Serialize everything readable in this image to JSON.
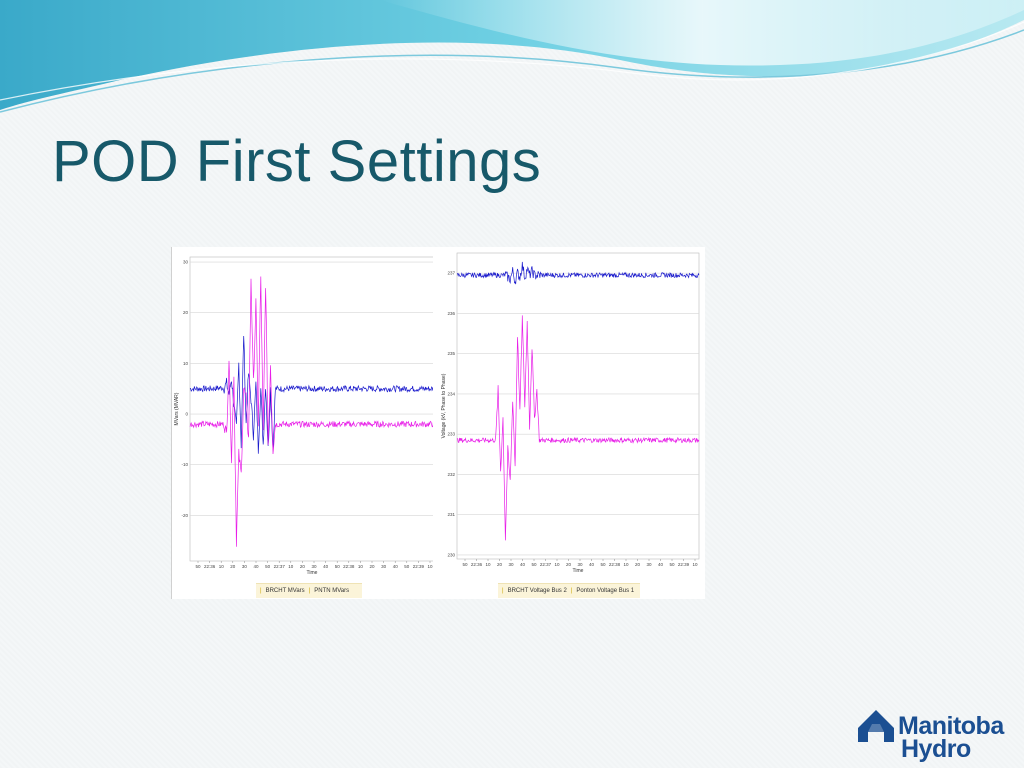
{
  "slide": {
    "title": "POD First Settings"
  },
  "colors": {
    "title": "#17596a",
    "series_blue": "#1a1acc",
    "series_magenta": "#e81ee8",
    "logo": "#1b4f92"
  },
  "logo": {
    "line1": "Manitoba",
    "line2": "Hydro",
    "icon": "manitoba-hydro-mark-icon"
  },
  "chart_data": [
    {
      "type": "line",
      "ylabel": "MVars (MVAR)",
      "xlabel": "Time",
      "ylim": [
        -29,
        31
      ],
      "yticks": [
        30,
        20,
        10,
        0,
        -10,
        -20
      ],
      "xlim": [
        0,
        100
      ],
      "xtick_labels": [
        "50",
        "22:36",
        "10",
        "20",
        "30",
        "40",
        "50",
        "22:37",
        "10",
        "20",
        "30",
        "40",
        "50",
        "22:38",
        "10",
        "20",
        "30",
        "40",
        "50",
        "22:39",
        "10"
      ],
      "grid": true,
      "legend": [
        "BRCHT MVars",
        "PNTN MVars"
      ],
      "series": [
        {
          "name": "BRCHT MVars",
          "color": "#1a1acc",
          "points": [
            [
              0,
              5
            ],
            [
              8,
              5
            ],
            [
              14,
              5.2
            ],
            [
              15,
              6
            ],
            [
              16,
              4
            ],
            [
              17,
              7
            ],
            [
              18,
              2
            ],
            [
              19,
              -3
            ],
            [
              20,
              10
            ],
            [
              21,
              -6
            ],
            [
              22,
              16
            ],
            [
              23,
              -2
            ],
            [
              24,
              8
            ],
            [
              25,
              3
            ],
            [
              26,
              -4
            ],
            [
              27,
              6
            ],
            [
              28,
              -7
            ],
            [
              29,
              5
            ],
            [
              30,
              -6
            ],
            [
              31,
              6
            ],
            [
              32,
              -7
            ],
            [
              33,
              5
            ],
            [
              34,
              -7
            ],
            [
              35,
              5
            ],
            [
              40,
              5
            ],
            [
              60,
              5
            ],
            [
              80,
              5
            ],
            [
              100,
              5
            ]
          ]
        },
        {
          "name": "PNTN MVars",
          "color": "#e81ee8",
          "points": [
            [
              0,
              -2
            ],
            [
              14,
              -2
            ],
            [
              15,
              -4
            ],
            [
              16,
              11
            ],
            [
              17,
              -9
            ],
            [
              18,
              8
            ],
            [
              19,
              -25
            ],
            [
              20,
              -8
            ],
            [
              21,
              -12
            ],
            [
              22,
              5
            ],
            [
              23,
              3
            ],
            [
              24,
              -5
            ],
            [
              25,
              27
            ],
            [
              26,
              6
            ],
            [
              27,
              22
            ],
            [
              28,
              -2
            ],
            [
              29,
              27
            ],
            [
              30,
              -4
            ],
            [
              31,
              26
            ],
            [
              32,
              -6
            ],
            [
              33,
              10
            ],
            [
              34,
              -7
            ],
            [
              35,
              -2
            ],
            [
              40,
              -2
            ],
            [
              60,
              -2
            ],
            [
              80,
              -2
            ],
            [
              100,
              -2
            ]
          ]
        }
      ]
    },
    {
      "type": "line",
      "ylabel": "Voltage (kV, Phase to Phase)",
      "xlabel": "Time",
      "ylim": [
        229.9,
        237.5
      ],
      "yticks": [
        237,
        236,
        235,
        234,
        233,
        232,
        231,
        230
      ],
      "xlim": [
        0,
        100
      ],
      "xtick_labels": [
        "50",
        "22:36",
        "10",
        "20",
        "30",
        "40",
        "50",
        "22:37",
        "10",
        "20",
        "30",
        "40",
        "50",
        "22:38",
        "10",
        "20",
        "30",
        "40",
        "50",
        "22:39",
        "10"
      ],
      "grid": true,
      "legend": [
        "BRCHT Voltage Bus 2",
        "Ponton Voltage Bus 1"
      ],
      "series": [
        {
          "name": "BRCHT Voltage Bus 2",
          "color": "#1a1acc",
          "points": [
            [
              0,
              236.95
            ],
            [
              20,
              236.95
            ],
            [
              22,
              236.85
            ],
            [
              23,
              237.05
            ],
            [
              24,
              236.8
            ],
            [
              25,
              237.0
            ],
            [
              26,
              236.9
            ],
            [
              27,
              237.2
            ],
            [
              28,
              236.9
            ],
            [
              29,
              237.1
            ],
            [
              30,
              236.95
            ],
            [
              31,
              237.05
            ],
            [
              32,
              236.95
            ],
            [
              35,
              236.95
            ],
            [
              60,
              236.95
            ],
            [
              100,
              236.95
            ]
          ]
        },
        {
          "name": "Ponton Voltage Bus 1",
          "color": "#e81ee8",
          "points": [
            [
              0,
              232.85
            ],
            [
              16,
              232.85
            ],
            [
              17,
              234.1
            ],
            [
              18,
              232.1
            ],
            [
              19,
              233.4
            ],
            [
              20,
              230.4
            ],
            [
              21,
              232.6
            ],
            [
              22,
              231.8
            ],
            [
              23,
              233.9
            ],
            [
              24,
              232.2
            ],
            [
              25,
              235.5
            ],
            [
              26,
              233.5
            ],
            [
              27,
              235.9
            ],
            [
              28,
              233.7
            ],
            [
              29,
              235.8
            ],
            [
              30,
              233.2
            ],
            [
              31,
              235.2
            ],
            [
              32,
              233.4
            ],
            [
              33,
              234.1
            ],
            [
              34,
              232.85
            ],
            [
              40,
              232.85
            ],
            [
              70,
              232.85
            ],
            [
              100,
              232.85
            ]
          ]
        }
      ]
    }
  ]
}
